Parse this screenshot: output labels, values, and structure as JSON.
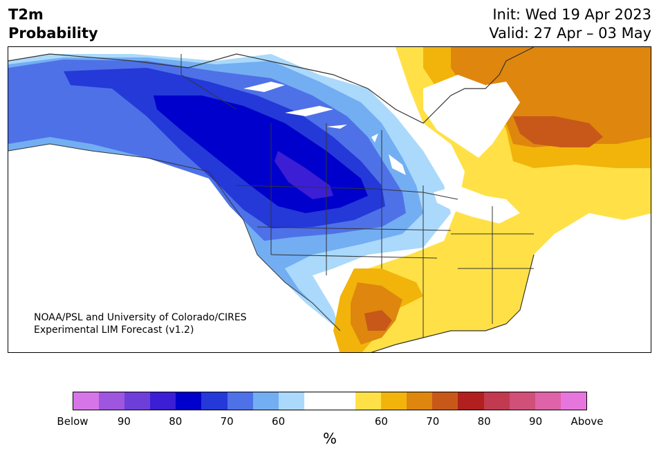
{
  "header": {
    "title_line1": "T2m",
    "title_line2": "Probability",
    "init_text": "Init: Wed 19 Apr 2023",
    "valid_text": "Valid: 27 Apr – 03 May"
  },
  "map": {
    "credit_line1": "NOAA/PSL and University of Colorado/CIRES",
    "credit_line2": "Experimental LIM Forecast (v1.2)"
  },
  "colorbar": {
    "unit": "%",
    "colors": [
      "#d675e8",
      "#9e55e0",
      "#6e3ed8",
      "#3c1ed4",
      "#0000cc",
      "#2439d8",
      "#4e71e8",
      "#73aef2",
      "#aad9fb",
      "#ffffff",
      "#ffffff",
      "#ffe147",
      "#f2b40a",
      "#de860e",
      "#c7581a",
      "#b21f1f",
      "#c23a50",
      "#d15079",
      "#de63a8",
      "#e775de"
    ],
    "ticks": [
      {
        "label": "Below",
        "index": 0
      },
      {
        "label": "90",
        "index": 2
      },
      {
        "label": "80",
        "index": 4
      },
      {
        "label": "70",
        "index": 6
      },
      {
        "label": "60",
        "index": 8
      },
      {
        "label": "60",
        "index": 12
      },
      {
        "label": "70",
        "index": 14
      },
      {
        "label": "80",
        "index": 16
      },
      {
        "label": "90",
        "index": 18
      },
      {
        "label": "Above",
        "index": 20
      }
    ]
  }
}
